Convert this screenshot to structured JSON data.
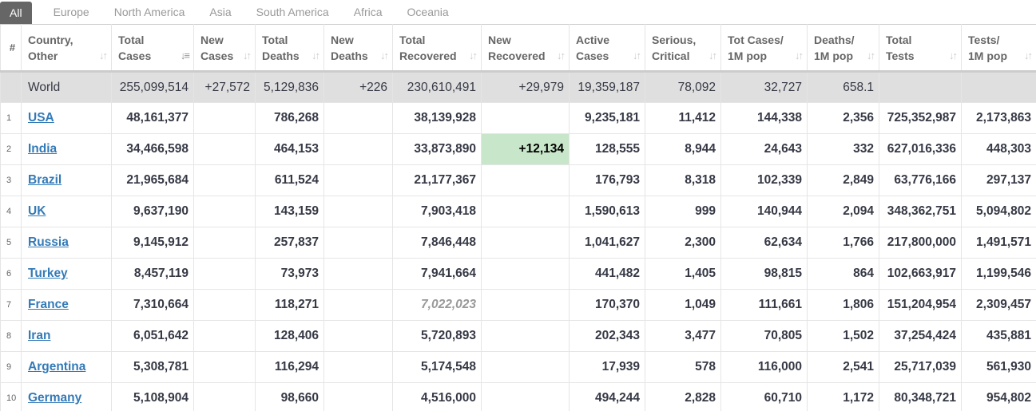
{
  "tabs": [
    "All",
    "Europe",
    "North America",
    "Asia",
    "South America",
    "Africa",
    "Oceania"
  ],
  "columns": [
    {
      "l1": "#",
      "l2": ""
    },
    {
      "l1": "Country,",
      "l2": "Other"
    },
    {
      "l1": "Total",
      "l2": "Cases"
    },
    {
      "l1": "New",
      "l2": "Cases"
    },
    {
      "l1": "Total",
      "l2": "Deaths"
    },
    {
      "l1": "New",
      "l2": "Deaths"
    },
    {
      "l1": "Total",
      "l2": "Recovered"
    },
    {
      "l1": "New",
      "l2": "Recovered"
    },
    {
      "l1": "Active",
      "l2": "Cases"
    },
    {
      "l1": "Serious,",
      "l2": "Critical"
    },
    {
      "l1": "Tot Cases/",
      "l2": "1M pop"
    },
    {
      "l1": "Deaths/",
      "l2": "1M pop"
    },
    {
      "l1": "Total",
      "l2": "Tests"
    },
    {
      "l1": "Tests/",
      "l2": "1M pop"
    }
  ],
  "world": {
    "name": "World",
    "total_cases": "255,099,514",
    "new_cases": "+27,572",
    "total_deaths": "5,129,836",
    "new_deaths": "+226",
    "total_recovered": "230,610,491",
    "new_recovered": "+29,979",
    "active": "19,359,187",
    "critical": "78,092",
    "cases_per_m": "32,727",
    "deaths_per_m": "658.1",
    "tests": "",
    "tests_per_m": ""
  },
  "rows": [
    {
      "idx": "1",
      "name": "USA",
      "total_cases": "48,161,377",
      "new_cases": "",
      "total_deaths": "786,268",
      "new_deaths": "",
      "total_recovered": "38,139,928",
      "new_recovered": "",
      "active": "9,235,181",
      "critical": "11,412",
      "cases_per_m": "144,338",
      "deaths_per_m": "2,356",
      "tests": "725,352,987",
      "tests_per_m": "2,173,863"
    },
    {
      "idx": "2",
      "name": "India",
      "total_cases": "34,466,598",
      "new_cases": "",
      "total_deaths": "464,153",
      "new_deaths": "",
      "total_recovered": "33,873,890",
      "new_recovered": "+12,134",
      "active": "128,555",
      "critical": "8,944",
      "cases_per_m": "24,643",
      "deaths_per_m": "332",
      "tests": "627,016,336",
      "tests_per_m": "448,303"
    },
    {
      "idx": "3",
      "name": "Brazil",
      "total_cases": "21,965,684",
      "new_cases": "",
      "total_deaths": "611,524",
      "new_deaths": "",
      "total_recovered": "21,177,367",
      "new_recovered": "",
      "active": "176,793",
      "critical": "8,318",
      "cases_per_m": "102,339",
      "deaths_per_m": "2,849",
      "tests": "63,776,166",
      "tests_per_m": "297,137"
    },
    {
      "idx": "4",
      "name": "UK",
      "total_cases": "9,637,190",
      "new_cases": "",
      "total_deaths": "143,159",
      "new_deaths": "",
      "total_recovered": "7,903,418",
      "new_recovered": "",
      "active": "1,590,613",
      "critical": "999",
      "cases_per_m": "140,944",
      "deaths_per_m": "2,094",
      "tests": "348,362,751",
      "tests_per_m": "5,094,802"
    },
    {
      "idx": "5",
      "name": "Russia",
      "total_cases": "9,145,912",
      "new_cases": "",
      "total_deaths": "257,837",
      "new_deaths": "",
      "total_recovered": "7,846,448",
      "new_recovered": "",
      "active": "1,041,627",
      "critical": "2,300",
      "cases_per_m": "62,634",
      "deaths_per_m": "1,766",
      "tests": "217,800,000",
      "tests_per_m": "1,491,571"
    },
    {
      "idx": "6",
      "name": "Turkey",
      "total_cases": "8,457,119",
      "new_cases": "",
      "total_deaths": "73,973",
      "new_deaths": "",
      "total_recovered": "7,941,664",
      "new_recovered": "",
      "active": "441,482",
      "critical": "1,405",
      "cases_per_m": "98,815",
      "deaths_per_m": "864",
      "tests": "102,663,917",
      "tests_per_m": "1,199,546"
    },
    {
      "idx": "7",
      "name": "France",
      "total_cases": "7,310,664",
      "new_cases": "",
      "total_deaths": "118,271",
      "new_deaths": "",
      "total_recovered": "7,022,023",
      "new_recovered": "",
      "active": "170,370",
      "critical": "1,049",
      "cases_per_m": "111,661",
      "deaths_per_m": "1,806",
      "tests": "151,204,954",
      "tests_per_m": "2,309,457"
    },
    {
      "idx": "8",
      "name": "Iran",
      "total_cases": "6,051,642",
      "new_cases": "",
      "total_deaths": "128,406",
      "new_deaths": "",
      "total_recovered": "5,720,893",
      "new_recovered": "",
      "active": "202,343",
      "critical": "3,477",
      "cases_per_m": "70,805",
      "deaths_per_m": "1,502",
      "tests": "37,254,424",
      "tests_per_m": "435,881"
    },
    {
      "idx": "9",
      "name": "Argentina",
      "total_cases": "5,308,781",
      "new_cases": "",
      "total_deaths": "116,294",
      "new_deaths": "",
      "total_recovered": "5,174,548",
      "new_recovered": "",
      "active": "17,939",
      "critical": "578",
      "cases_per_m": "116,000",
      "deaths_per_m": "2,541",
      "tests": "25,717,039",
      "tests_per_m": "561,930"
    },
    {
      "idx": "10",
      "name": "Germany",
      "total_cases": "5,108,904",
      "new_cases": "",
      "total_deaths": "98,660",
      "new_deaths": "",
      "total_recovered": "4,516,000",
      "new_recovered": "",
      "active": "494,244",
      "critical": "2,828",
      "cases_per_m": "60,710",
      "deaths_per_m": "1,172",
      "tests": "80,348,721",
      "tests_per_m": "954,802"
    }
  ],
  "icons": {
    "sort": "sort-arrows-icon",
    "sort_active": "sort-descending-icon"
  }
}
